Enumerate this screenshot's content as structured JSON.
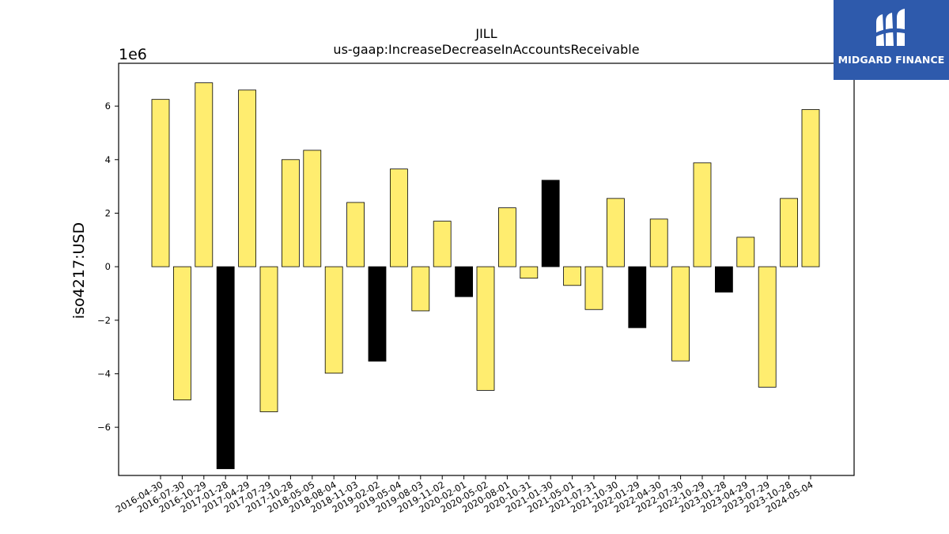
{
  "logo": {
    "text": "MIDGARD FINANCE",
    "bg_color": "#2e5aac",
    "icon": "midgard-finance-logo-mark-icon"
  },
  "chart_data": {
    "type": "bar",
    "title": "JILL",
    "subtitle": "us-gaap:IncreaseDecreaseInAccountsReceivable",
    "xlabel": "",
    "ylabel": "iso4217:USD",
    "offset_label": "1e6",
    "ylim": [
      -7.8,
      7.6
    ],
    "yticks": [
      -6,
      -4,
      -2,
      0,
      2,
      4,
      6
    ],
    "grid": false,
    "legend": "none",
    "colors": {
      "default": "#ffed6f",
      "highlight": "#000000",
      "edge": "#000000"
    },
    "categories": [
      "2016-04-30",
      "2016-07-30",
      "2016-10-29",
      "2017-01-28",
      "2017-04-29",
      "2017-07-29",
      "2017-10-28",
      "2018-05-05",
      "2018-08-04",
      "2018-11-03",
      "2019-02-02",
      "2019-05-04",
      "2019-08-03",
      "2019-11-02",
      "2020-02-01",
      "2020-05-02",
      "2020-08-01",
      "2020-10-31",
      "2021-01-30",
      "2021-05-01",
      "2021-07-31",
      "2021-10-30",
      "2022-01-29",
      "2022-04-30",
      "2022-07-30",
      "2022-10-29",
      "2023-01-28",
      "2023-04-29",
      "2023-07-29",
      "2023-10-28",
      "2024-05-04"
    ],
    "values": [
      6.25,
      -4.98,
      6.87,
      -7.55,
      6.6,
      -5.42,
      4.0,
      4.35,
      -3.98,
      2.4,
      -3.53,
      3.65,
      -1.65,
      1.7,
      -1.12,
      -4.62,
      2.2,
      -0.43,
      3.23,
      -0.7,
      -1.6,
      2.55,
      -2.28,
      1.78,
      -3.52,
      3.88,
      -0.95,
      1.1,
      -4.5,
      2.55,
      5.87
    ],
    "highlight": [
      false,
      false,
      false,
      true,
      false,
      false,
      false,
      false,
      false,
      false,
      true,
      false,
      false,
      false,
      true,
      false,
      false,
      false,
      true,
      false,
      false,
      false,
      true,
      false,
      false,
      false,
      true,
      false,
      false,
      false,
      false
    ]
  }
}
